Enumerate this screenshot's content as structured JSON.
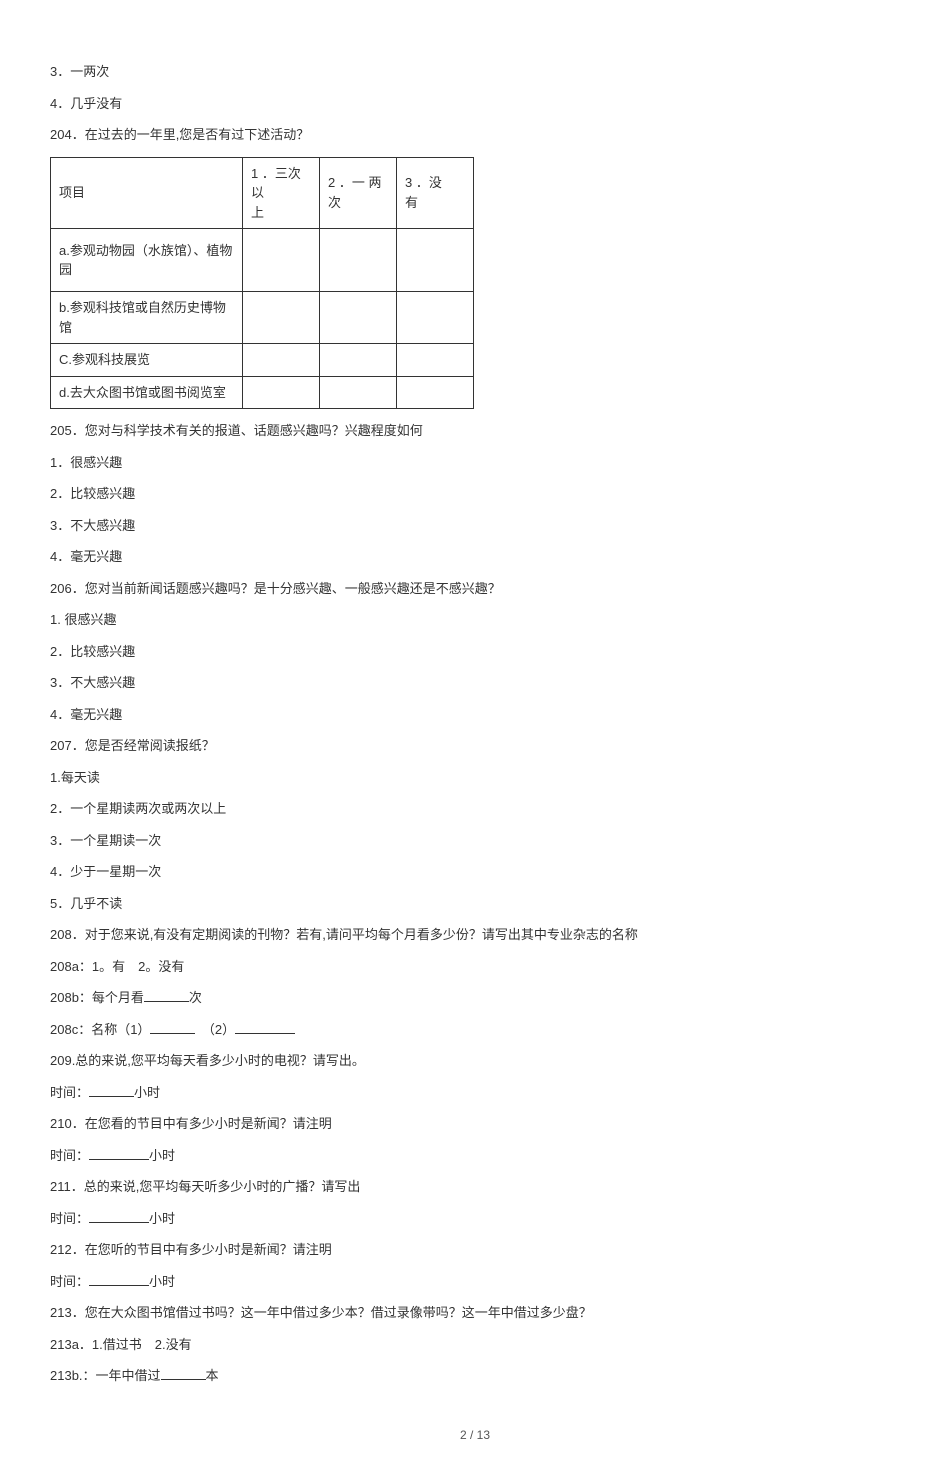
{
  "q3": {
    "text": "3．一两次"
  },
  "q4": {
    "text": "4．几乎没有"
  },
  "q204": {
    "prompt": "204．在过去的一年里,您是否有过下述活动？",
    "header": {
      "item": "项目",
      "c1a": "1 ．三次以",
      "c1b": "上",
      "c2a": "2 ．一 两",
      "c2b": "次",
      "c3a": "3 ．没",
      "c3b": "有"
    },
    "rows": {
      "a": "a.参观动物园（水族馆）、植物园",
      "b": "b.参观科技馆或自然历史博物馆",
      "c": "C.参观科技展览",
      "d": "d.去大众图书馆或图书阅览室"
    }
  },
  "q205": {
    "prompt": "205．您对与科学技术有关的报道、话题感兴趣吗？兴趣程度如何",
    "o1": "1．很感兴趣",
    "o2": "2．比较感兴趣",
    "o3": "3．不大感兴趣",
    "o4": "4．毫无兴趣"
  },
  "q206": {
    "prompt": "206．您对当前新闻话题感兴趣吗？是十分感兴趣、一般感兴趣还是不感兴趣？",
    "o1": "1. 很感兴趣",
    "o2": "2．比较感兴趣",
    "o3": "3．不大感兴趣",
    "o4": "4．毫无兴趣"
  },
  "q207": {
    "prompt": "207．您是否经常阅读报纸？",
    "o1": "1.每天读",
    "o2": "2．一个星期读两次或两次以上",
    "o3": "3．一个星期读一次",
    "o4": "4．少于一星期一次",
    "o5": "5．几乎不读"
  },
  "q208": {
    "prompt": "208．对于您来说,有没有定期阅读的刊物？若有,请问平均每个月看多少份？请写出其中专业杂志的名称",
    "a": "208a：1。有　2。没有",
    "b_pre": "208b：每个月看",
    "b_suf": "次",
    "c_pre": "208c：名称（1）",
    "c_mid": "　（2）"
  },
  "q209": {
    "prompt": "209.总的来说,您平均每天看多少小时的电视？请写出。",
    "label_pre": "时间：",
    "label_suf": "小时"
  },
  "q210": {
    "prompt": "210．在您看的节目中有多少小时是新闻？请注明",
    "label_pre": "时间：",
    "label_suf": "小时"
  },
  "q211": {
    "prompt": "211．总的来说,您平均每天听多少小时的广播？请写出",
    "label_pre": "时间：",
    "label_suf": "小时"
  },
  "q212": {
    "prompt": "212．在您听的节目中有多少小时是新闻？请注明",
    "label_pre": "时间：",
    "label_suf": "小时"
  },
  "q213": {
    "prompt": "213．您在大众图书馆借过书吗？这一年中借过多少本？借过录像带吗？这一年中借过多少盘？",
    "a": "213a．1.借过书　2.没有",
    "b_pre": "213b.：一年中借过",
    "b_suf": "本"
  },
  "footer": "2 / 13"
}
